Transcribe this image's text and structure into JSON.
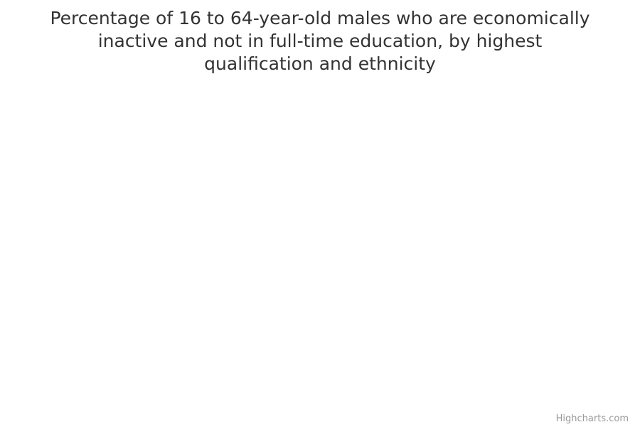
{
  "chart_data": {
    "type": "bar",
    "title": "Percentage of 16 to 64-year-old males who are economically inactive and not in full-time education, by highest qualification and ethnicity",
    "categories": [],
    "series": []
  },
  "credits": {
    "label": "Highcharts.com"
  }
}
